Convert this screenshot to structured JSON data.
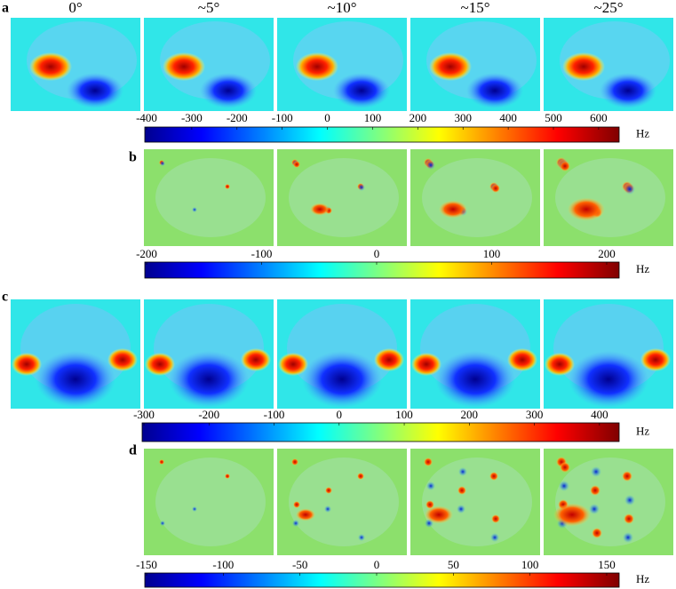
{
  "panels": [
    {
      "label": "a",
      "column_titles": [
        "0°",
        "~5°",
        "~10°",
        "~15°",
        "~25°"
      ],
      "colorbar": {
        "ticks": [
          "-400",
          "-300",
          "-200",
          "-100",
          "0",
          "100",
          "200",
          "300",
          "400",
          "500",
          "600"
        ],
        "unit": "Hz"
      }
    },
    {
      "label": "b",
      "colorbar": {
        "ticks": [
          "-200",
          "-100",
          "0",
          "100",
          "200"
        ],
        "unit": "Hz"
      }
    },
    {
      "label": "c",
      "colorbar": {
        "ticks": [
          "-300",
          "-200",
          "-100",
          "0",
          "100",
          "200",
          "300",
          "400"
        ],
        "unit": "Hz"
      }
    },
    {
      "label": "d",
      "colorbar": {
        "ticks": [
          "-150",
          "-100",
          "-50",
          "0",
          "50",
          "100",
          "150"
        ],
        "unit": "Hz"
      }
    }
  ]
}
